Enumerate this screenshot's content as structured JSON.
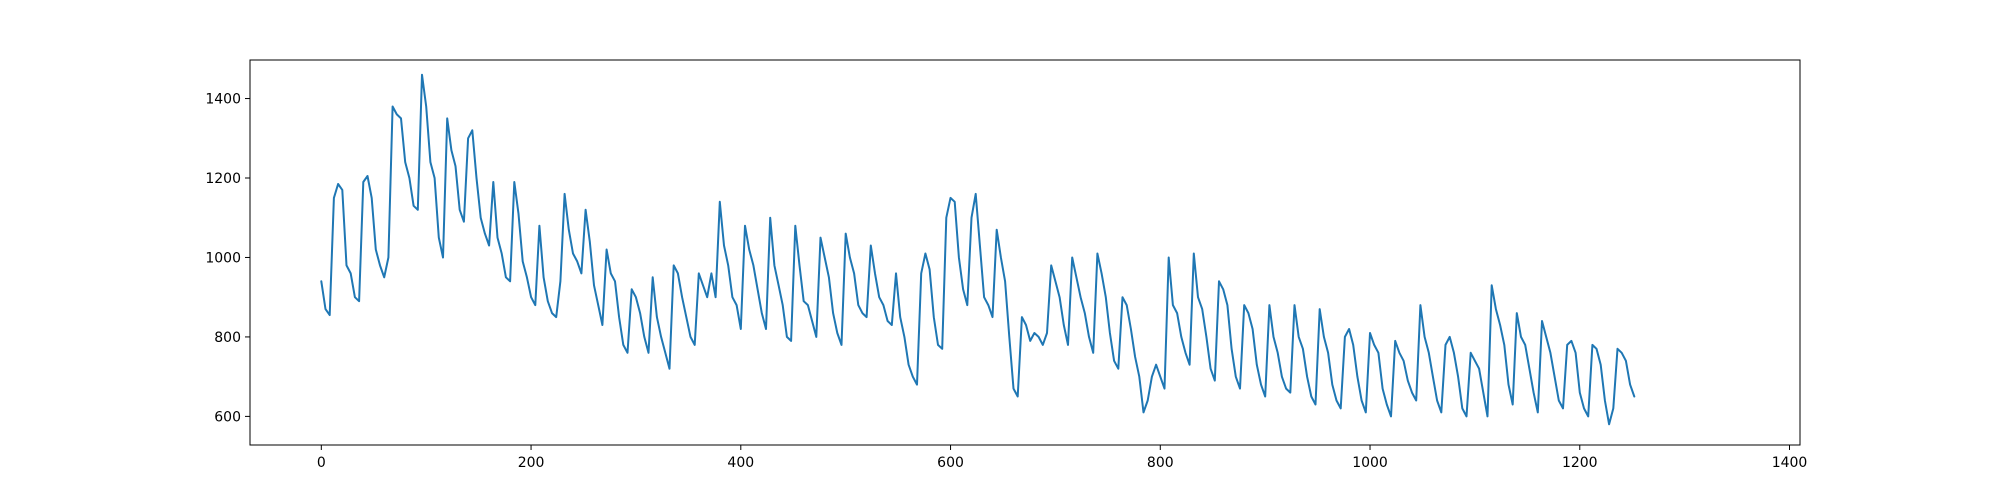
{
  "chart_data": {
    "type": "line",
    "title": "",
    "xlabel": "",
    "ylabel": "",
    "xlim": [
      -68,
      1410
    ],
    "ylim": [
      528,
      1497
    ],
    "grid": false,
    "legend": "none",
    "x_ticks": [
      0,
      200,
      400,
      600,
      800,
      1000,
      1200,
      1400
    ],
    "y_ticks": [
      600,
      800,
      1000,
      1200,
      1400
    ],
    "x_tick_labels": [
      "0",
      "200",
      "400",
      "600",
      "800",
      "1000",
      "1200",
      "1400"
    ],
    "y_tick_labels": [
      "600",
      "800",
      "1000",
      "1200",
      "1400"
    ],
    "series": [
      {
        "color": "#1f77b4",
        "x_start": 0,
        "x_step": 4,
        "values": [
          940,
          870,
          855,
          1150,
          1185,
          1170,
          980,
          960,
          900,
          890,
          1190,
          1205,
          1150,
          1020,
          980,
          950,
          1000,
          1380,
          1360,
          1350,
          1240,
          1200,
          1130,
          1120,
          1460,
          1380,
          1240,
          1200,
          1050,
          1000,
          1350,
          1270,
          1230,
          1120,
          1090,
          1300,
          1320,
          1200,
          1100,
          1060,
          1030,
          1190,
          1050,
          1010,
          950,
          940,
          1190,
          1110,
          990,
          950,
          900,
          880,
          1080,
          950,
          890,
          860,
          850,
          940,
          1160,
          1070,
          1010,
          990,
          960,
          1120,
          1040,
          930,
          880,
          830,
          1020,
          960,
          940,
          850,
          780,
          760,
          920,
          900,
          860,
          800,
          760,
          950,
          850,
          800,
          760,
          720,
          980,
          960,
          900,
          850,
          800,
          780,
          960,
          930,
          900,
          960,
          900,
          1140,
          1030,
          980,
          900,
          880,
          820,
          1080,
          1020,
          980,
          920,
          860,
          820,
          1100,
          980,
          930,
          880,
          800,
          790,
          1080,
          980,
          890,
          880,
          840,
          800,
          1050,
          1000,
          950,
          860,
          810,
          780,
          1060,
          1000,
          960,
          880,
          860,
          850,
          1030,
          960,
          900,
          880,
          840,
          830,
          960,
          850,
          800,
          730,
          700,
          680,
          960,
          1010,
          970,
          850,
          780,
          770,
          1100,
          1150,
          1140,
          1000,
          920,
          880,
          1100,
          1160,
          1030,
          900,
          880,
          850,
          1070,
          1000,
          940,
          800,
          670,
          650,
          850,
          830,
          790,
          810,
          800,
          780,
          810,
          980,
          940,
          900,
          830,
          780,
          1000,
          950,
          900,
          860,
          800,
          760,
          1010,
          960,
          900,
          810,
          740,
          720,
          900,
          880,
          820,
          750,
          700,
          610,
          640,
          700,
          730,
          700,
          670,
          1000,
          880,
          860,
          800,
          760,
          730,
          1010,
          900,
          870,
          800,
          720,
          690,
          940,
          920,
          880,
          770,
          700,
          670,
          880,
          860,
          820,
          730,
          680,
          650,
          880,
          800,
          760,
          700,
          670,
          660,
          880,
          800,
          770,
          700,
          650,
          630,
          870,
          800,
          760,
          680,
          640,
          620,
          800,
          820,
          780,
          700,
          640,
          610,
          810,
          780,
          760,
          670,
          630,
          600,
          790,
          760,
          740,
          690,
          660,
          640,
          880,
          800,
          760,
          700,
          640,
          610,
          780,
          800,
          760,
          700,
          620,
          600,
          760,
          740,
          720,
          660,
          600,
          930,
          870,
          830,
          780,
          680,
          630,
          860,
          800,
          780,
          720,
          660,
          610,
          840,
          800,
          760,
          700,
          640,
          620,
          780,
          790,
          760,
          660,
          620,
          600,
          780,
          770,
          730,
          640,
          580,
          620,
          770,
          760,
          740,
          680,
          650
        ]
      }
    ]
  }
}
